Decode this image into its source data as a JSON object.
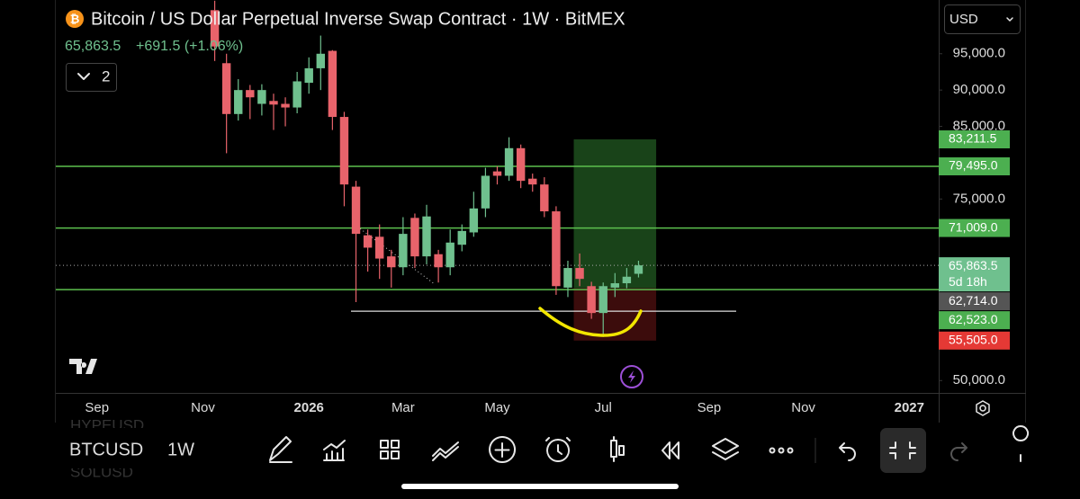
{
  "header": {
    "title": "Bitcoin / US Dollar Perpetual Inverse Swap Contract · 1W · BitMEX",
    "price": "65,863.5",
    "change": "+691.5 (+1.06%)",
    "currency": "USD",
    "indicator_count": "2"
  },
  "chart_data": {
    "type": "candlestick",
    "categories": [
      null,
      null,
      null,
      "Sep",
      null,
      null,
      null,
      null,
      null,
      null,
      null,
      null,
      "Nov",
      null,
      null,
      null,
      null,
      null,
      null,
      null,
      null,
      "2026",
      null,
      null,
      null,
      null,
      null,
      null,
      null,
      "Mar",
      null,
      null,
      null,
      null,
      null,
      null,
      null,
      "May",
      null,
      null,
      null,
      null,
      null,
      null,
      null,
      null,
      "Jul",
      null,
      null,
      null,
      null,
      null,
      null,
      null,
      null,
      "Sep",
      null,
      null,
      null,
      null,
      null,
      null,
      null,
      "Nov",
      null,
      null,
      null,
      null,
      null,
      null,
      null,
      null,
      "2027",
      null,
      null
    ],
    "open": [
      null,
      null,
      null,
      null,
      null,
      null,
      null,
      null,
      null,
      null,
      null,
      null,
      null,
      101000,
      93700,
      86700,
      90000,
      88100,
      88500,
      88100,
      87600,
      91000,
      93000,
      95400,
      86300,
      76700,
      70000,
      69800,
      67100,
      65600,
      72400,
      67100,
      67400,
      65600,
      68700,
      70400,
      73700,
      78800,
      78200,
      82000,
      77800,
      77000,
      73300,
      62800,
      65500,
      63000,
      59300,
      62800,
      63400,
      64700,
      null,
      null,
      null,
      null,
      null,
      null,
      null,
      null,
      null,
      null,
      null,
      null,
      null,
      null,
      null,
      null,
      null,
      null,
      null,
      null,
      null,
      null,
      null,
      null,
      null
    ],
    "high": [
      null,
      null,
      null,
      null,
      null,
      null,
      null,
      null,
      null,
      null,
      null,
      null,
      null,
      102300,
      95000,
      91500,
      90700,
      90800,
      89500,
      89000,
      92500,
      94500,
      97500,
      95500,
      87000,
      77500,
      70800,
      71500,
      68000,
      72500,
      73000,
      74200,
      68000,
      70800,
      71500,
      76000,
      79300,
      79500,
      83500,
      82500,
      78500,
      78000,
      74000,
      66500,
      67500,
      63600,
      63500,
      64800,
      65500,
      66500,
      null,
      null,
      null,
      null,
      null,
      null,
      null,
      null,
      null,
      null,
      null,
      null,
      null,
      null,
      null,
      null,
      null,
      null,
      null,
      null,
      null,
      null,
      null,
      null,
      null
    ],
    "low": [
      null,
      null,
      null,
      null,
      null,
      null,
      null,
      null,
      null,
      null,
      null,
      null,
      null,
      94000,
      81300,
      85800,
      86000,
      86500,
      84500,
      85000,
      86800,
      89500,
      90000,
      84500,
      74000,
      60800,
      65000,
      64000,
      62800,
      64500,
      65500,
      66000,
      63500,
      64500,
      67800,
      69800,
      72500,
      77000,
      77500,
      76500,
      76000,
      72500,
      61800,
      61500,
      63000,
      58500,
      56000,
      61500,
      62700,
      64200,
      null,
      null,
      null,
      null,
      null,
      null,
      null,
      null,
      null,
      null,
      null,
      null,
      null,
      null,
      null,
      null,
      null,
      null,
      null,
      null,
      null,
      null,
      null,
      null,
      null
    ],
    "close": [
      null,
      null,
      null,
      null,
      null,
      null,
      null,
      null,
      null,
      null,
      null,
      null,
      null,
      96000,
      86700,
      90000,
      89000,
      90000,
      88000,
      87600,
      91200,
      93000,
      95000,
      86300,
      77000,
      70200,
      68300,
      66800,
      65600,
      70200,
      67100,
      72600,
      65600,
      69000,
      70600,
      73700,
      78200,
      78200,
      82000,
      77500,
      77000,
      73300,
      63000,
      65500,
      64000,
      59300,
      63000,
      63400,
      64300,
      65863.5,
      null,
      null,
      null,
      null,
      null,
      null,
      null,
      null,
      null,
      null,
      null,
      null,
      null,
      null,
      null,
      null,
      null,
      null,
      null,
      null,
      null,
      null,
      null,
      null,
      null
    ],
    "up_color": "#6fc08e",
    "down_color": "#e8636b",
    "ylim": [
      48300,
      102400
    ],
    "yticks": [
      {
        "value": 95000,
        "label": "95,000.0"
      },
      {
        "value": 90000,
        "label": "90,000.0"
      },
      {
        "value": 85000,
        "label": "85,000.0"
      },
      {
        "value": 75000,
        "label": "75,000.0"
      },
      {
        "value": 50000,
        "label": "50,000.0"
      }
    ],
    "levels": [
      {
        "value": 79495,
        "label": "79,495.0"
      },
      {
        "value": 71009,
        "label": "71,009.0"
      },
      {
        "value": 62523,
        "label": "62,523.0"
      }
    ],
    "level_color": "#5cbf4e",
    "support_line": 59550,
    "position": {
      "target": {
        "value": 83211.5,
        "label": "83,211.5"
      },
      "entry": {
        "value": 62714,
        "label": "62,714.0"
      },
      "stop": {
        "value": 55505,
        "label": "55,505.0"
      }
    },
    "last_price": {
      "value": 65863.5,
      "label": "65,863.5",
      "countdown": "5d 18h"
    }
  },
  "footer": {
    "symbol": "BTCUSD",
    "interval": "1W",
    "prev_symbol": "HYPEUSD",
    "next_symbol": "SOLUSD"
  }
}
